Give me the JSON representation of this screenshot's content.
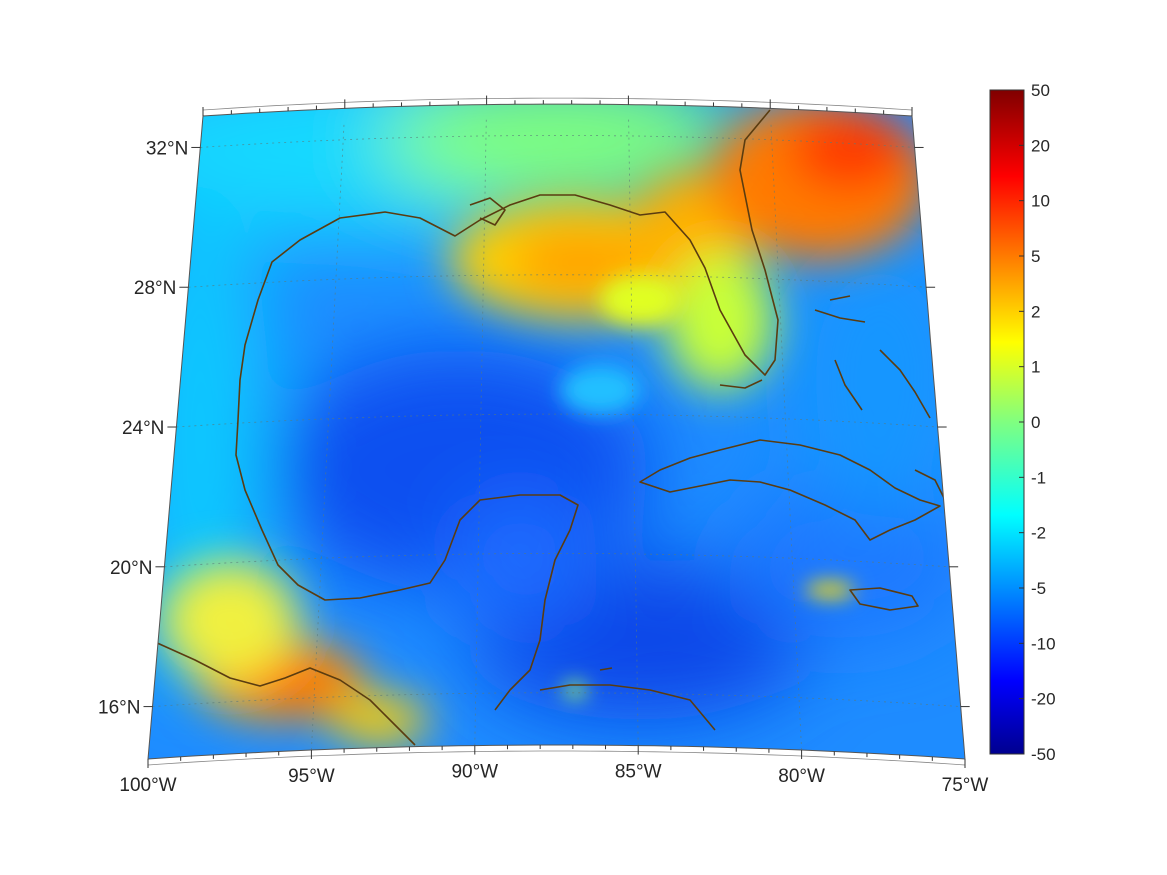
{
  "map": {
    "projection": "conic",
    "lon_range": [
      -100,
      -75
    ],
    "lat_range": [
      14,
      33
    ],
    "lon_ticks": [
      {
        "value": -100,
        "label": "100°W"
      },
      {
        "value": -95,
        "label": "95°W"
      },
      {
        "value": -90,
        "label": "90°W"
      },
      {
        "value": -85,
        "label": "85°W"
      },
      {
        "value": -80,
        "label": "80°W"
      },
      {
        "value": -75,
        "label": "75°W"
      }
    ],
    "lat_ticks": [
      {
        "value": 32,
        "label": "32°N"
      },
      {
        "value": 28,
        "label": "28°N"
      },
      {
        "value": 24,
        "label": "24°N"
      },
      {
        "value": 20,
        "label": "20°N"
      },
      {
        "value": 16,
        "label": "16°N"
      }
    ],
    "grid": true,
    "coastline_color": "#5a3c10",
    "field": {
      "description_colors": "jet",
      "dominant": "blue (negative) over Gulf and Caribbean; yellow/orange over northern Gulf coast and SE US; red over Georgia; orange over southern Mexico"
    }
  },
  "colorbar": {
    "colormap": "jet",
    "placement": "right",
    "tick_labels": [
      "50",
      "20",
      "10",
      "5",
      "2",
      "1",
      "0",
      "-1",
      "-2",
      "-5",
      "-10",
      "-20",
      "-50"
    ]
  }
}
